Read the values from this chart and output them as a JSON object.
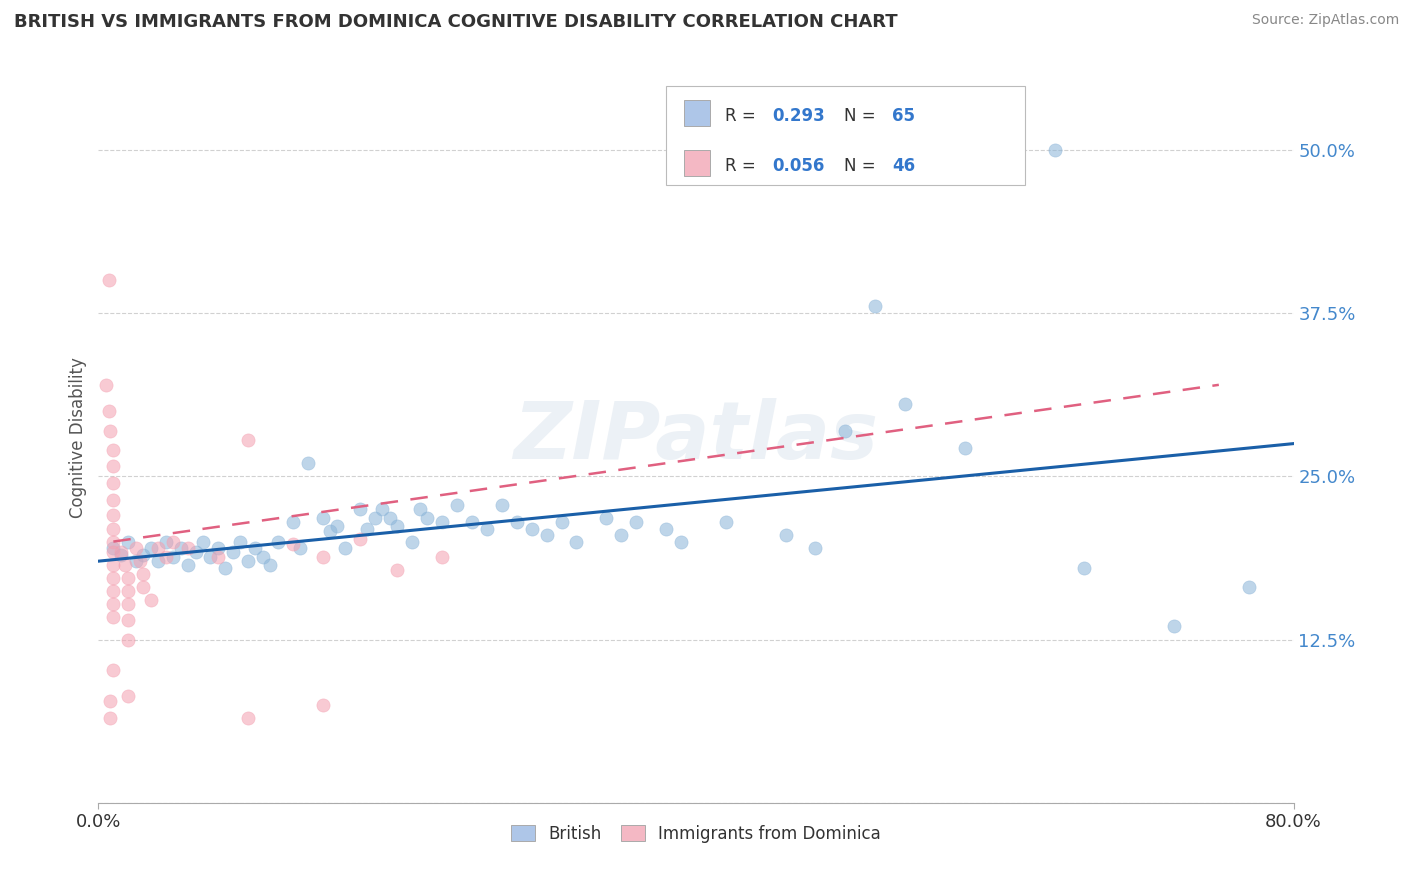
{
  "title": "BRITISH VS IMMIGRANTS FROM DOMINICA COGNITIVE DISABILITY CORRELATION CHART",
  "source_text": "Source: ZipAtlas.com",
  "ylabel": "Cognitive Disability",
  "xlim": [
    0.0,
    0.8
  ],
  "ylim": [
    0.0,
    0.56
  ],
  "ytick_vals": [
    0.0,
    0.125,
    0.25,
    0.375,
    0.5
  ],
  "ytick_labels": [
    "",
    "12.5%",
    "25.0%",
    "37.5%",
    "50.0%"
  ],
  "xtick_vals": [
    0.0,
    0.8
  ],
  "xtick_labels": [
    "0.0%",
    "80.0%"
  ],
  "grid_color": "#cccccc",
  "background_color": "#ffffff",
  "british_color": "#8ab4d8",
  "dominica_color": "#f4a0b0",
  "british_R": 0.293,
  "british_N": 65,
  "dominica_R": 0.056,
  "dominica_N": 46,
  "watermark": "ZIPatlas",
  "tick_color": "#4488cc",
  "british_points": [
    [
      0.01,
      0.195
    ],
    [
      0.015,
      0.19
    ],
    [
      0.02,
      0.2
    ],
    [
      0.025,
      0.185
    ],
    [
      0.03,
      0.19
    ],
    [
      0.035,
      0.195
    ],
    [
      0.04,
      0.185
    ],
    [
      0.045,
      0.2
    ],
    [
      0.05,
      0.188
    ],
    [
      0.055,
      0.195
    ],
    [
      0.06,
      0.182
    ],
    [
      0.065,
      0.192
    ],
    [
      0.07,
      0.2
    ],
    [
      0.075,
      0.188
    ],
    [
      0.08,
      0.195
    ],
    [
      0.085,
      0.18
    ],
    [
      0.09,
      0.192
    ],
    [
      0.095,
      0.2
    ],
    [
      0.1,
      0.185
    ],
    [
      0.105,
      0.195
    ],
    [
      0.11,
      0.188
    ],
    [
      0.115,
      0.182
    ],
    [
      0.12,
      0.2
    ],
    [
      0.13,
      0.215
    ],
    [
      0.135,
      0.195
    ],
    [
      0.14,
      0.26
    ],
    [
      0.15,
      0.218
    ],
    [
      0.155,
      0.208
    ],
    [
      0.16,
      0.212
    ],
    [
      0.165,
      0.195
    ],
    [
      0.175,
      0.225
    ],
    [
      0.18,
      0.21
    ],
    [
      0.185,
      0.218
    ],
    [
      0.19,
      0.225
    ],
    [
      0.195,
      0.218
    ],
    [
      0.2,
      0.212
    ],
    [
      0.21,
      0.2
    ],
    [
      0.215,
      0.225
    ],
    [
      0.22,
      0.218
    ],
    [
      0.23,
      0.215
    ],
    [
      0.24,
      0.228
    ],
    [
      0.25,
      0.215
    ],
    [
      0.26,
      0.21
    ],
    [
      0.27,
      0.228
    ],
    [
      0.28,
      0.215
    ],
    [
      0.29,
      0.21
    ],
    [
      0.3,
      0.205
    ],
    [
      0.31,
      0.215
    ],
    [
      0.32,
      0.2
    ],
    [
      0.34,
      0.218
    ],
    [
      0.35,
      0.205
    ],
    [
      0.36,
      0.215
    ],
    [
      0.38,
      0.21
    ],
    [
      0.39,
      0.2
    ],
    [
      0.42,
      0.215
    ],
    [
      0.46,
      0.205
    ],
    [
      0.48,
      0.195
    ],
    [
      0.5,
      0.285
    ],
    [
      0.52,
      0.38
    ],
    [
      0.54,
      0.305
    ],
    [
      0.58,
      0.272
    ],
    [
      0.64,
      0.5
    ],
    [
      0.66,
      0.18
    ],
    [
      0.72,
      0.135
    ],
    [
      0.77,
      0.165
    ]
  ],
  "dominica_points": [
    [
      0.005,
      0.32
    ],
    [
      0.007,
      0.3
    ],
    [
      0.008,
      0.285
    ],
    [
      0.01,
      0.27
    ],
    [
      0.01,
      0.258
    ],
    [
      0.01,
      0.245
    ],
    [
      0.01,
      0.232
    ],
    [
      0.01,
      0.22
    ],
    [
      0.01,
      0.21
    ],
    [
      0.01,
      0.2
    ],
    [
      0.01,
      0.192
    ],
    [
      0.01,
      0.182
    ],
    [
      0.01,
      0.172
    ],
    [
      0.01,
      0.162
    ],
    [
      0.01,
      0.152
    ],
    [
      0.01,
      0.142
    ],
    [
      0.01,
      0.102
    ],
    [
      0.015,
      0.192
    ],
    [
      0.018,
      0.182
    ],
    [
      0.02,
      0.172
    ],
    [
      0.02,
      0.162
    ],
    [
      0.02,
      0.152
    ],
    [
      0.02,
      0.14
    ],
    [
      0.02,
      0.125
    ],
    [
      0.02,
      0.082
    ],
    [
      0.025,
      0.195
    ],
    [
      0.028,
      0.185
    ],
    [
      0.03,
      0.175
    ],
    [
      0.03,
      0.165
    ],
    [
      0.035,
      0.155
    ],
    [
      0.04,
      0.195
    ],
    [
      0.045,
      0.188
    ],
    [
      0.05,
      0.2
    ],
    [
      0.06,
      0.195
    ],
    [
      0.08,
      0.188
    ],
    [
      0.1,
      0.278
    ],
    [
      0.13,
      0.198
    ],
    [
      0.15,
      0.188
    ],
    [
      0.175,
      0.202
    ],
    [
      0.2,
      0.178
    ],
    [
      0.23,
      0.188
    ],
    [
      0.1,
      0.065
    ],
    [
      0.15,
      0.075
    ],
    [
      0.008,
      0.065
    ],
    [
      0.008,
      0.078
    ],
    [
      0.007,
      0.4
    ]
  ]
}
